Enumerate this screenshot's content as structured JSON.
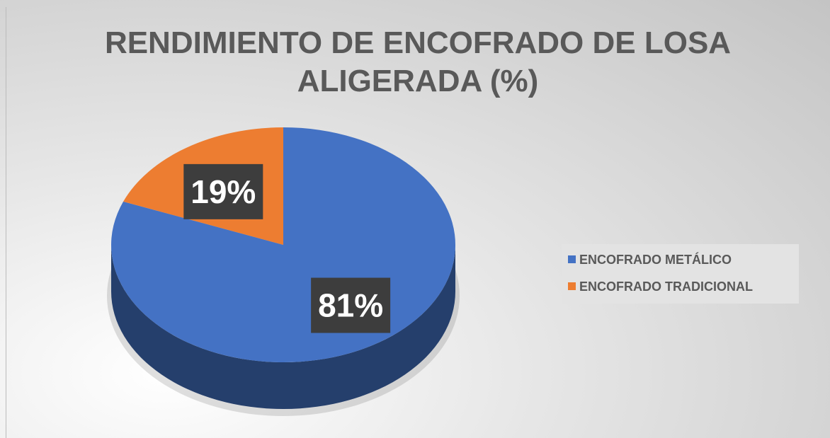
{
  "chart_data": {
    "type": "pie",
    "title": "RENDIMIENTO DE ENCOFRADO DE LOSA ALIGERADA (%)",
    "categories": [
      "ENCOFRADO METÁLICO",
      "ENCOFRADO TRADICIONAL"
    ],
    "values": [
      81,
      19
    ],
    "value_labels": [
      "81%",
      "19%"
    ],
    "colors": [
      "#4472c4",
      "#ed7d31"
    ],
    "legend": "right"
  }
}
